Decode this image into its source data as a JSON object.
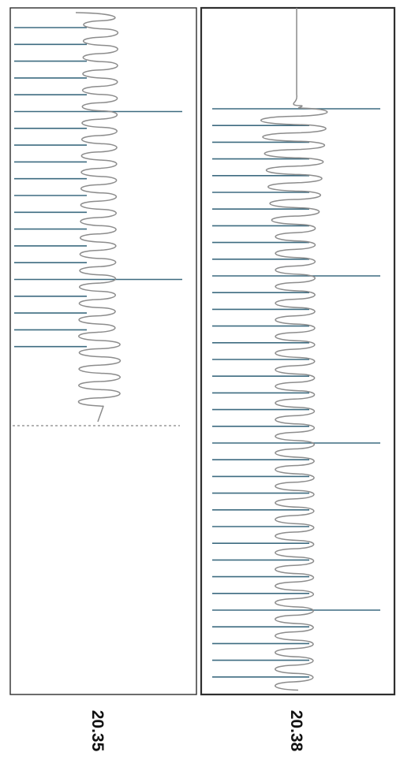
{
  "panels": [
    {
      "label": "20.35",
      "regular_tick_count": 20,
      "long_tick_positions": [
        5,
        15
      ],
      "wave_cycles": 24,
      "has_end_marker": true
    },
    {
      "label": "20.38",
      "regular_tick_count": 35,
      "long_tick_positions": [
        0,
        10,
        20,
        30
      ],
      "wave_cycles": 35,
      "has_end_marker": false
    }
  ],
  "colors": {
    "tick": "#3d6b80",
    "wave": "#8c8c8c",
    "frame": "#2e2e2e"
  }
}
